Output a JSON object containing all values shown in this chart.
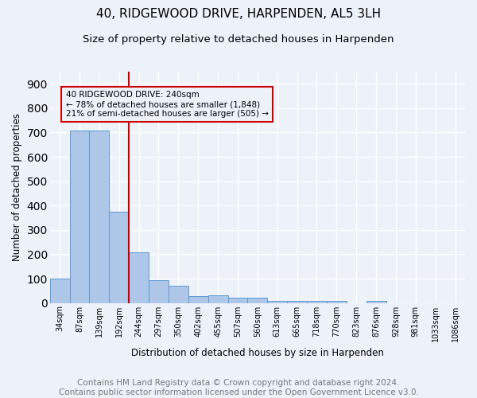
{
  "title": "40, RIDGEWOOD DRIVE, HARPENDEN, AL5 3LH",
  "subtitle": "Size of property relative to detached houses in Harpenden",
  "xlabel": "Distribution of detached houses by size in Harpenden",
  "ylabel": "Number of detached properties",
  "categories": [
    "34sqm",
    "87sqm",
    "139sqm",
    "192sqm",
    "244sqm",
    "297sqm",
    "350sqm",
    "402sqm",
    "455sqm",
    "507sqm",
    "560sqm",
    "613sqm",
    "665sqm",
    "718sqm",
    "770sqm",
    "823sqm",
    "876sqm",
    "928sqm",
    "981sqm",
    "1033sqm",
    "1086sqm"
  ],
  "values": [
    100,
    707,
    707,
    375,
    207,
    93,
    70,
    28,
    32,
    22,
    22,
    10,
    8,
    8,
    8,
    0,
    8,
    0,
    0,
    0,
    0
  ],
  "bar_color": "#aec6e8",
  "bar_edge_color": "#5b9bd5",
  "bg_color": "#edf2f9",
  "grid_color": "#ffffff",
  "vline_color": "#cc0000",
  "vline_index": 4,
  "annotation_line1": "40 RIDGEWOOD DRIVE: 240sqm",
  "annotation_line2": "← 78% of detached houses are smaller (1,848)",
  "annotation_line3": "21% of semi-detached houses are larger (505) →",
  "annotation_box_color": "#cc0000",
  "footer": "Contains HM Land Registry data © Crown copyright and database right 2024.\nContains public sector information licensed under the Open Government Licence v3.0.",
  "ylim": [
    0,
    950
  ],
  "title_fontsize": 11,
  "subtitle_fontsize": 9.5,
  "axis_label_fontsize": 8.5,
  "tick_fontsize": 7,
  "annot_fontsize": 7.5,
  "footer_fontsize": 7.5
}
